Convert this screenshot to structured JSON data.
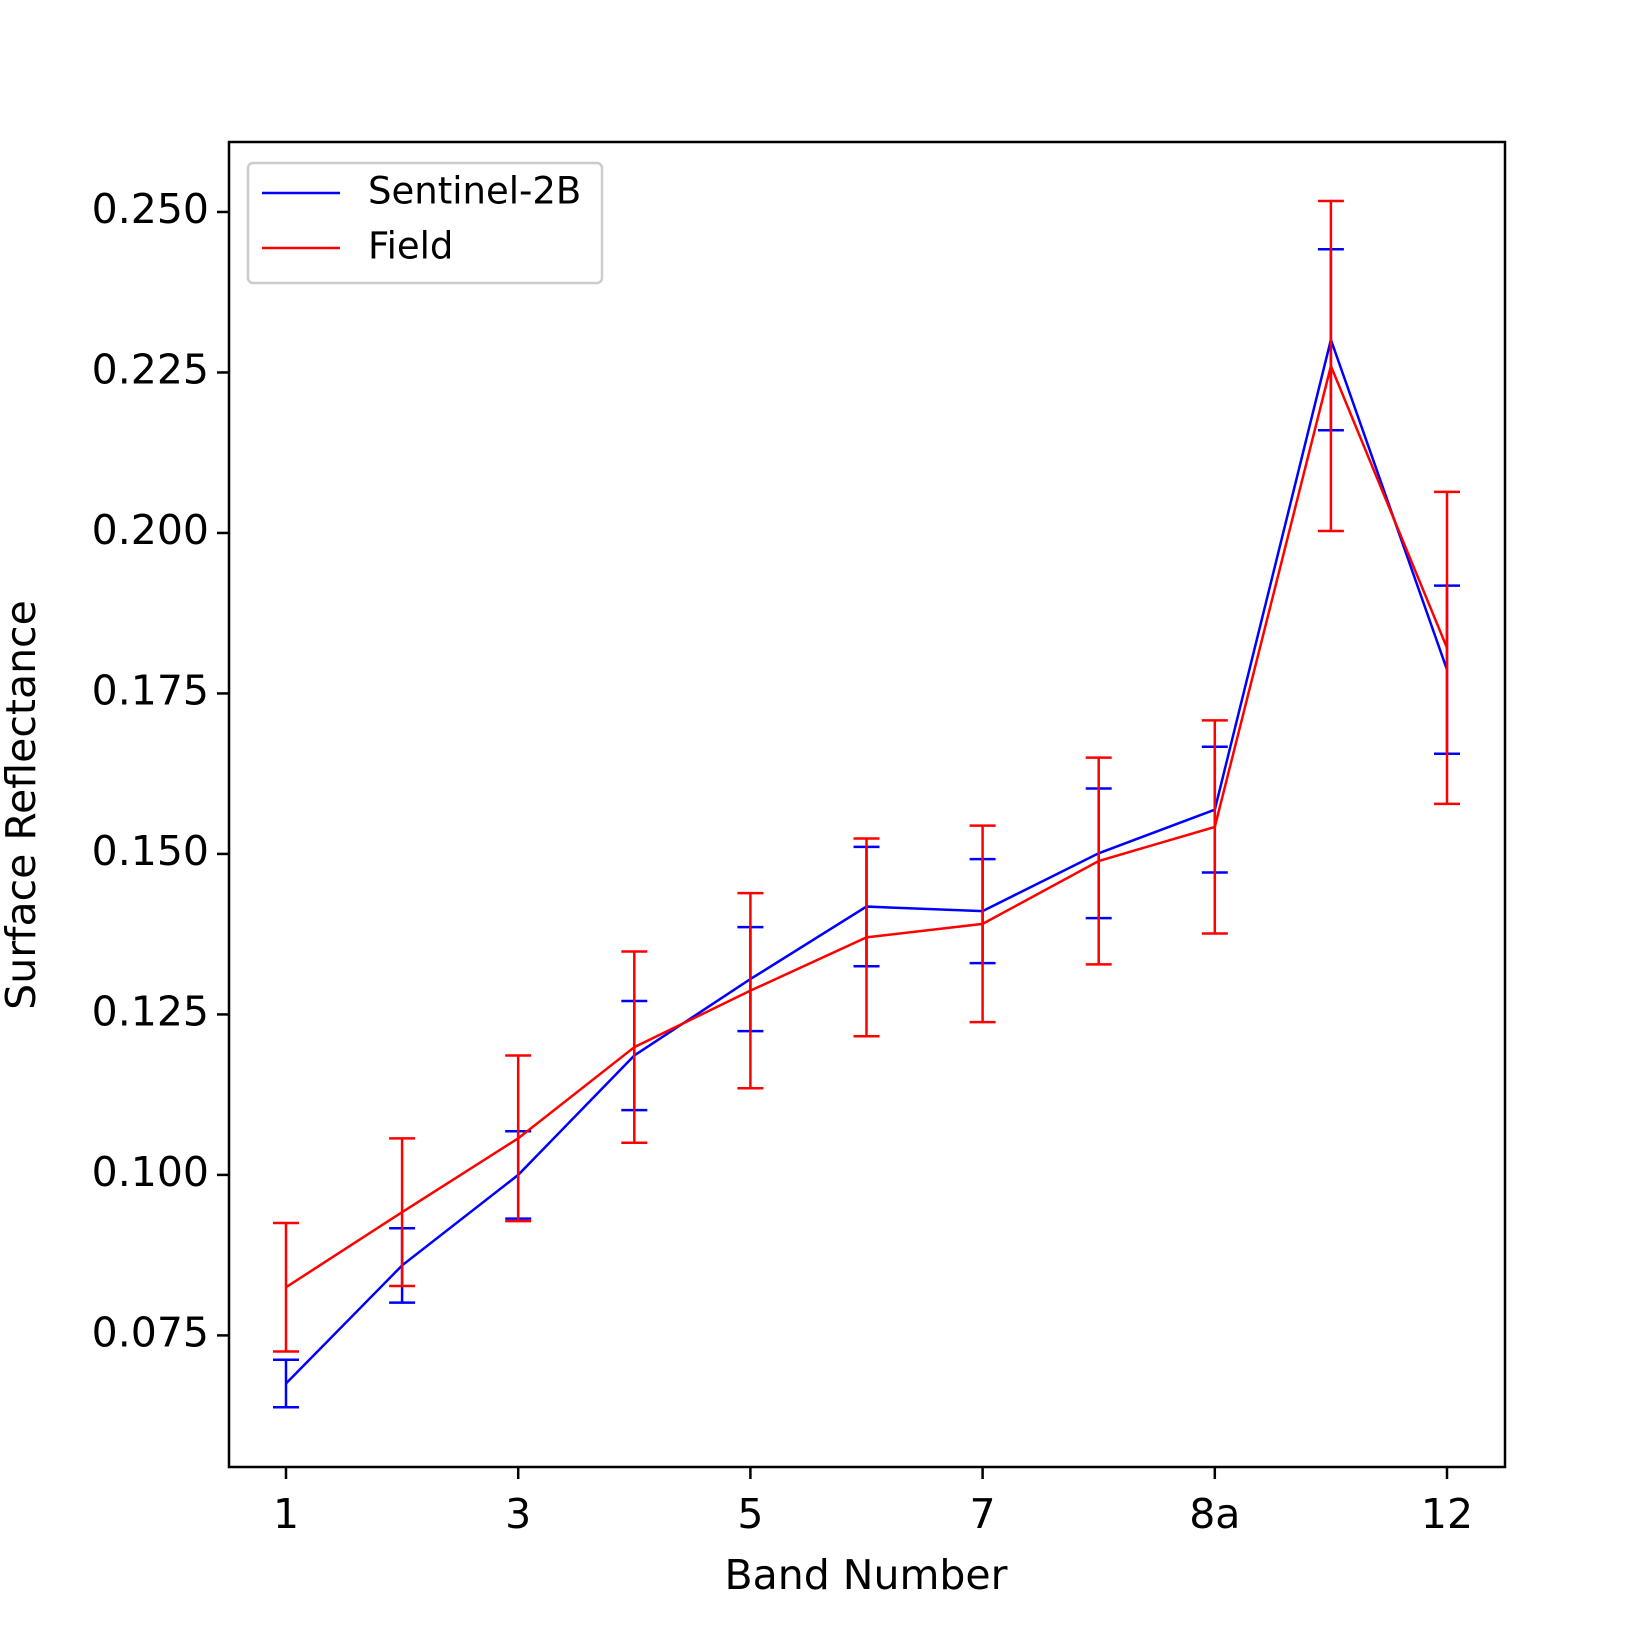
{
  "chart_data": {
    "type": "line",
    "x_label": "Band Number",
    "y_label": "Surface Reflectance",
    "categories": [
      "1",
      null,
      "3",
      null,
      "5",
      null,
      "7",
      null,
      "8a",
      null,
      "12"
    ],
    "series": [
      {
        "name": "Sentinel-2B",
        "color": "#0000ff",
        "values": [
          0.0675,
          0.0859,
          0.1,
          0.1186,
          0.1305,
          0.1418,
          0.1411,
          0.1501,
          0.1569,
          0.2301,
          0.1787
        ],
        "errors": [
          0.0037,
          0.0058,
          0.0068,
          0.0085,
          0.0081,
          0.0093,
          0.0081,
          0.0101,
          0.0098,
          0.0141,
          0.0131
        ]
      },
      {
        "name": "Field",
        "color": "#ff0000",
        "values": [
          0.0825,
          0.0942,
          0.1057,
          0.1199,
          0.1287,
          0.137,
          0.1391,
          0.1489,
          0.1542,
          0.226,
          0.1821
        ],
        "errors": [
          0.01,
          0.0115,
          0.0129,
          0.0149,
          0.0152,
          0.0154,
          0.0153,
          0.0161,
          0.0166,
          0.0257,
          0.0243
        ]
      }
    ],
    "ylim": [
      0.0545,
      0.2609
    ],
    "yticks": [
      {
        "value": 0.075,
        "label": "0.075"
      },
      {
        "value": 0.1,
        "label": "0.100"
      },
      {
        "value": 0.125,
        "label": "0.125"
      },
      {
        "value": 0.15,
        "label": "0.150"
      },
      {
        "value": 0.175,
        "label": "0.175"
      },
      {
        "value": 0.2,
        "label": "0.200"
      },
      {
        "value": 0.225,
        "label": "0.225"
      },
      {
        "value": 0.25,
        "label": "0.250"
      }
    ],
    "grid": false,
    "legend": "upper left"
  }
}
